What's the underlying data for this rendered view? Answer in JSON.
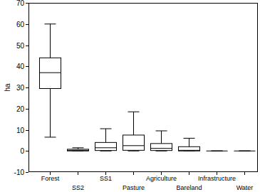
{
  "chart_data": {
    "type": "box",
    "y_label": "ha",
    "categories": [
      "Forest",
      "SS2",
      "SS1",
      "Pasture",
      "Agriculture",
      "Bareland",
      "Infrastructure",
      "Water"
    ],
    "min": [
      6.5,
      0,
      0,
      0,
      0,
      0,
      0,
      0
    ],
    "q1": [
      29.5,
      0,
      0.2,
      0.3,
      0.2,
      0,
      0,
      0
    ],
    "median": [
      37,
      0.3,
      1.5,
      2.5,
      1.2,
      0.3,
      0,
      0
    ],
    "q3": [
      44,
      0.8,
      4,
      7.5,
      3.5,
      2,
      0,
      0
    ],
    "max": [
      60,
      1.5,
      10.5,
      18.5,
      9.5,
      6,
      0,
      0
    ],
    "color": "#000000",
    "ylim": [
      -10,
      70
    ],
    "yticks": [
      -10,
      0,
      10,
      20,
      30,
      40,
      50,
      60,
      70
    ],
    "grid": false
  }
}
